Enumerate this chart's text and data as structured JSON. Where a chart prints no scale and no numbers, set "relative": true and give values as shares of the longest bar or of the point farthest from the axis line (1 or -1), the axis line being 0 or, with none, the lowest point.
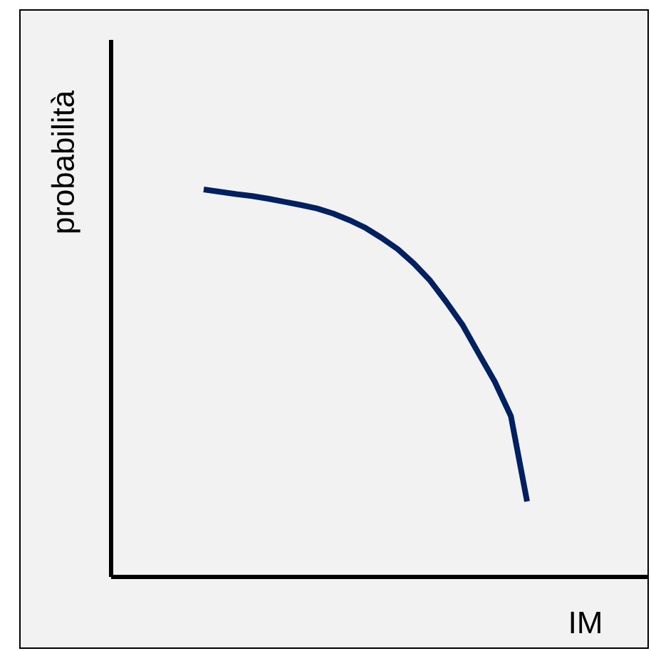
{
  "chart_data": {
    "type": "line",
    "relative": true,
    "xlabel": "IM",
    "ylabel": "probabilità",
    "categories": [
      null,
      null,
      null,
      null,
      null,
      null,
      null,
      null,
      null,
      null,
      null,
      null,
      null,
      null,
      null,
      null,
      null,
      null,
      null,
      null,
      null
    ],
    "series": [
      {
        "color": "#002060",
        "values": [
          1,
          0.994,
          0.988,
          0.983,
          0.976,
          0.968,
          0.96,
          0.951,
          0.938,
          0.921,
          0.901,
          0.875,
          0.846,
          0.809,
          0.765,
          0.71,
          0.651,
          0.577,
          0.504,
          0.415,
          0.195
        ]
      }
    ],
    "marker": "none",
    "line_style": "solid"
  }
}
